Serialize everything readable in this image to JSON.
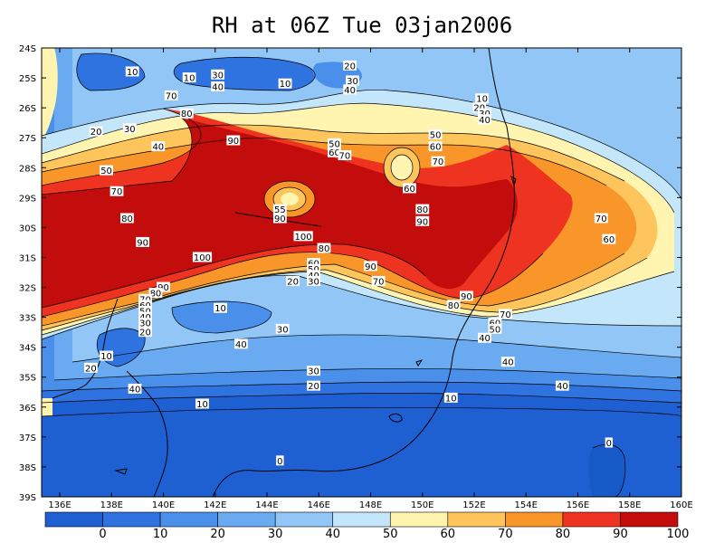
{
  "title": "RH at 06Z Tue 03jan2006",
  "map": {
    "lat_ticks": [
      "24S",
      "25S",
      "26S",
      "27S",
      "28S",
      "29S",
      "30S",
      "31S",
      "32S",
      "33S",
      "34S",
      "35S",
      "36S",
      "37S",
      "38S",
      "39S"
    ],
    "lon_ticks": [
      "136E",
      "138E",
      "140E",
      "142E",
      "144E",
      "146E",
      "148E",
      "150E",
      "152E",
      "154E",
      "156E",
      "158E",
      "160E"
    ],
    "lon_range": [
      135.3,
      160
    ],
    "lat_range": [
      -39,
      -24
    ]
  },
  "colorbar": {
    "levels": [
      "0",
      "10",
      "20",
      "30",
      "40",
      "50",
      "60",
      "70",
      "80",
      "90",
      "100"
    ],
    "colors": [
      "#1e5fd2",
      "#2f73e0",
      "#4a8fea",
      "#6aaaf1",
      "#92c6f6",
      "#c4e6fb",
      "#fff4b0",
      "#fdc55c",
      "#f9962a",
      "#ee3320",
      "#c30c0c"
    ]
  },
  "contour_labels": [
    {
      "text": "10",
      "lon": 138.8,
      "lat": -24.8
    },
    {
      "text": "10",
      "lon": 141.0,
      "lat": -25.0
    },
    {
      "text": "30",
      "lon": 142.1,
      "lat": -24.9
    },
    {
      "text": "40",
      "lon": 142.1,
      "lat": -25.3
    },
    {
      "text": "10",
      "lon": 144.7,
      "lat": -25.2
    },
    {
      "text": "20",
      "lon": 147.2,
      "lat": -24.6
    },
    {
      "text": "30",
      "lon": 147.3,
      "lat": -25.1
    },
    {
      "text": "40",
      "lon": 147.2,
      "lat": -25.4
    },
    {
      "text": "70",
      "lon": 140.3,
      "lat": -25.6
    },
    {
      "text": "80",
      "lon": 140.9,
      "lat": -26.2
    },
    {
      "text": "20",
      "lon": 137.4,
      "lat": -26.8
    },
    {
      "text": "30",
      "lon": 138.7,
      "lat": -26.7
    },
    {
      "text": "40",
      "lon": 139.8,
      "lat": -27.3
    },
    {
      "text": "90",
      "lon": 142.7,
      "lat": -27.1
    },
    {
      "text": "50",
      "lon": 146.6,
      "lat": -27.2
    },
    {
      "text": "60",
      "lon": 146.6,
      "lat": -27.5
    },
    {
      "text": "70",
      "lon": 147.0,
      "lat": -27.6
    },
    {
      "text": "10",
      "lon": 152.3,
      "lat": -25.7
    },
    {
      "text": "20",
      "lon": 152.2,
      "lat": -26.0
    },
    {
      "text": "30",
      "lon": 152.4,
      "lat": -26.2
    },
    {
      "text": "40",
      "lon": 152.4,
      "lat": -26.4
    },
    {
      "text": "50",
      "lon": 150.5,
      "lat": -26.9
    },
    {
      "text": "60",
      "lon": 150.5,
      "lat": -27.3
    },
    {
      "text": "70",
      "lon": 150.6,
      "lat": -27.8
    },
    {
      "text": "50",
      "lon": 137.8,
      "lat": -28.1
    },
    {
      "text": "70",
      "lon": 138.2,
      "lat": -28.8
    },
    {
      "text": "60",
      "lon": 149.5,
      "lat": -28.7
    },
    {
      "text": "80",
      "lon": 138.6,
      "lat": -29.7
    },
    {
      "text": "55",
      "lon": 144.5,
      "lat": -29.4
    },
    {
      "text": "90",
      "lon": 144.5,
      "lat": -29.7
    },
    {
      "text": "80",
      "lon": 150.0,
      "lat": -29.4
    },
    {
      "text": "90",
      "lon": 150.0,
      "lat": -29.8
    },
    {
      "text": "70",
      "lon": 156.9,
      "lat": -29.7
    },
    {
      "text": "60",
      "lon": 157.2,
      "lat": -30.4
    },
    {
      "text": "90",
      "lon": 139.2,
      "lat": -30.5
    },
    {
      "text": "100",
      "lon": 145.4,
      "lat": -30.3
    },
    {
      "text": "80",
      "lon": 146.2,
      "lat": -30.7
    },
    {
      "text": "100",
      "lon": 141.5,
      "lat": -31.0
    },
    {
      "text": "60",
      "lon": 145.8,
      "lat": -31.2
    },
    {
      "text": "50",
      "lon": 145.8,
      "lat": -31.4
    },
    {
      "text": "40",
      "lon": 145.8,
      "lat": -31.6
    },
    {
      "text": "30",
      "lon": 145.8,
      "lat": -31.8
    },
    {
      "text": "20",
      "lon": 145.0,
      "lat": -31.8
    },
    {
      "text": "90",
      "lon": 148.0,
      "lat": -31.3
    },
    {
      "text": "70",
      "lon": 148.3,
      "lat": -31.8
    },
    {
      "text": "90",
      "lon": 140.0,
      "lat": -32.0
    },
    {
      "text": "80",
      "lon": 139.7,
      "lat": -32.2
    },
    {
      "text": "70",
      "lon": 139.3,
      "lat": -32.4
    },
    {
      "text": "60",
      "lon": 139.3,
      "lat": -32.6
    },
    {
      "text": "50",
      "lon": 139.3,
      "lat": -32.8
    },
    {
      "text": "40",
      "lon": 139.3,
      "lat": -33.0
    },
    {
      "text": "30",
      "lon": 139.3,
      "lat": -33.2
    },
    {
      "text": "20",
      "lon": 139.3,
      "lat": -33.5
    },
    {
      "text": "10",
      "lon": 142.2,
      "lat": -32.7
    },
    {
      "text": "90",
      "lon": 151.7,
      "lat": -32.3
    },
    {
      "text": "80",
      "lon": 151.2,
      "lat": -32.6
    },
    {
      "text": "70",
      "lon": 153.2,
      "lat": -32.9
    },
    {
      "text": "60",
      "lon": 152.8,
      "lat": -33.2
    },
    {
      "text": "50",
      "lon": 152.8,
      "lat": -33.4
    },
    {
      "text": "40",
      "lon": 152.4,
      "lat": -33.7
    },
    {
      "text": "30",
      "lon": 144.6,
      "lat": -33.4
    },
    {
      "text": "40",
      "lon": 143.0,
      "lat": -33.9
    },
    {
      "text": "10",
      "lon": 137.8,
      "lat": -34.3
    },
    {
      "text": "20",
      "lon": 137.2,
      "lat": -34.7
    },
    {
      "text": "40",
      "lon": 153.3,
      "lat": -34.5
    },
    {
      "text": "30",
      "lon": 145.8,
      "lat": -34.8
    },
    {
      "text": "20",
      "lon": 145.8,
      "lat": -35.3
    },
    {
      "text": "40",
      "lon": 138.9,
      "lat": -35.4
    },
    {
      "text": "40",
      "lon": 155.4,
      "lat": -35.3
    },
    {
      "text": "10",
      "lon": 141.5,
      "lat": -35.9
    },
    {
      "text": "10",
      "lon": 151.1,
      "lat": -35.7
    },
    {
      "text": "0",
      "lon": 157.2,
      "lat": -37.2
    },
    {
      "text": "0",
      "lon": 144.5,
      "lat": -37.8
    }
  ]
}
